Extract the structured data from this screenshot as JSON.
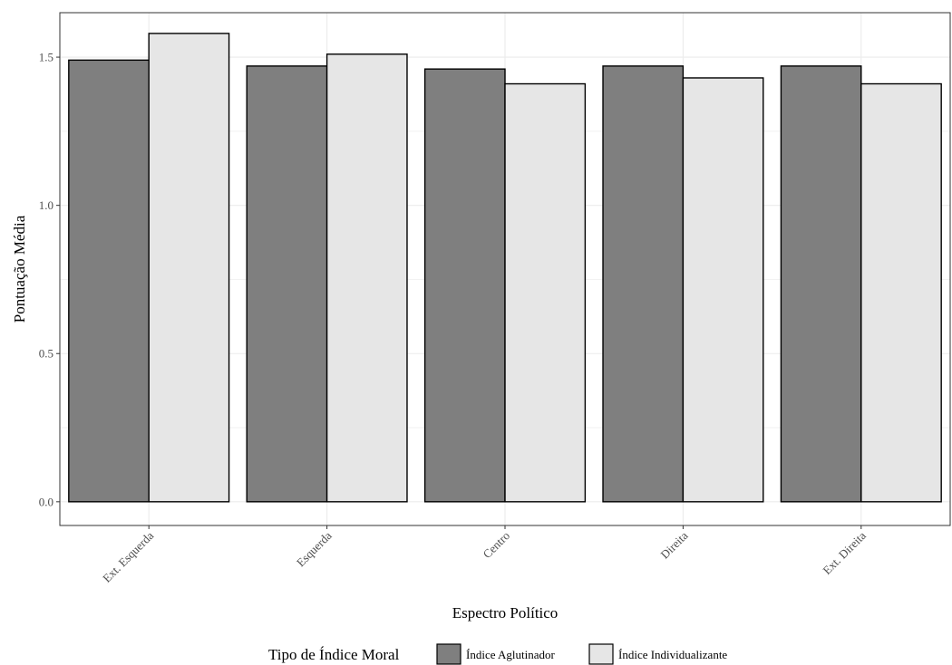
{
  "chart_data": {
    "type": "bar",
    "xlabel": "Espectro Político",
    "ylabel": "Pontuação Média",
    "categories": [
      "Ext. Esquerda",
      "Esquerda",
      "Centro",
      "Direita",
      "Ext. Direita"
    ],
    "series": [
      {
        "name": "Índice Aglutinador",
        "values": [
          1.49,
          1.47,
          1.46,
          1.47,
          1.47
        ],
        "color": "#7f7f7f"
      },
      {
        "name": "Índice Individualizante",
        "values": [
          1.58,
          1.51,
          1.41,
          1.43,
          1.41
        ],
        "color": "#e6e6e6"
      }
    ],
    "ylim": [
      -0.08,
      1.65
    ],
    "yticks": [
      "0.0",
      "0.5",
      "1.0",
      "1.5"
    ],
    "grid": true,
    "legend": {
      "title": "Tipo de Índice Moral",
      "position": "bottom"
    }
  }
}
